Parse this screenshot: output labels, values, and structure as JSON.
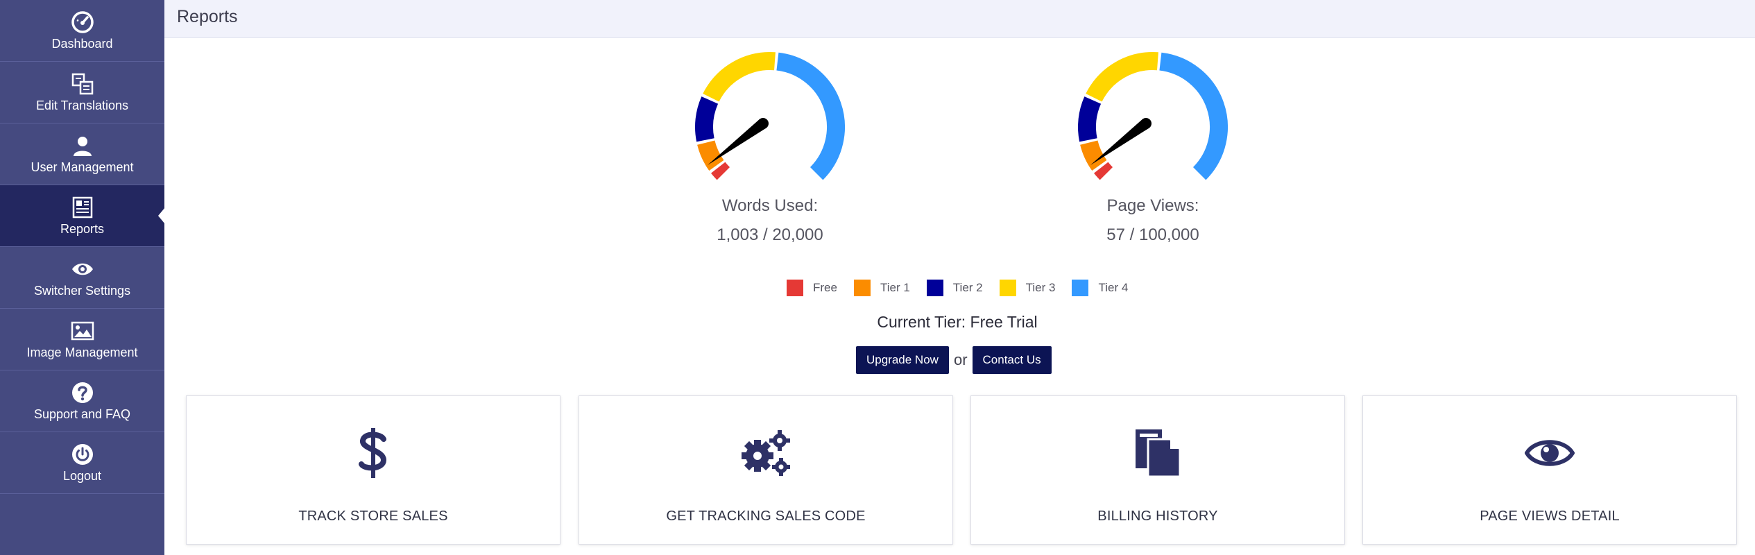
{
  "header": {
    "title": "Reports"
  },
  "sidebar": {
    "items": [
      {
        "label": "Dashboard",
        "icon": "speedometer-icon"
      },
      {
        "label": "Edit Translations",
        "icon": "translate-icon"
      },
      {
        "label": "User Management",
        "icon": "user-icon"
      },
      {
        "label": "Reports",
        "icon": "report-icon",
        "active": true
      },
      {
        "label": "Switcher Settings",
        "icon": "eye-icon"
      },
      {
        "label": "Image Management",
        "icon": "image-icon"
      },
      {
        "label": "Support and FAQ",
        "icon": "question-icon"
      },
      {
        "label": "Logout",
        "icon": "power-icon"
      }
    ]
  },
  "gauges": [
    {
      "label": "Words Used:",
      "value_text": "1,003 / 20,000",
      "used": 1003,
      "limit": 20000
    },
    {
      "label": "Page Views:",
      "value_text": "57 / 100,000",
      "used": 57,
      "limit": 100000
    }
  ],
  "legend": [
    {
      "label": "Free",
      "color": "#e53935"
    },
    {
      "label": "Tier 1",
      "color": "#fb8c00"
    },
    {
      "label": "Tier 2",
      "color": "#000099"
    },
    {
      "label": "Tier 3",
      "color": "#ffd600"
    },
    {
      "label": "Tier 4",
      "color": "#3399ff"
    }
  ],
  "tier": {
    "text": "Current Tier: Free Trial"
  },
  "actions": {
    "upgrade_label": "Upgrade Now",
    "or_text": "or",
    "contact_label": "Contact Us"
  },
  "cards": [
    {
      "title": "TRACK STORE SALES",
      "icon": "dollar-icon"
    },
    {
      "title": "GET TRACKING SALES CODE",
      "icon": "gears-icon"
    },
    {
      "title": "BILLING HISTORY",
      "icon": "documents-icon"
    },
    {
      "title": "PAGE VIEWS DETAIL",
      "icon": "eye-icon"
    }
  ],
  "colors": {
    "sidebar": "#454a80",
    "sidebar_active": "#232760",
    "accent": "#0c1454",
    "icon": "#2e3166"
  }
}
